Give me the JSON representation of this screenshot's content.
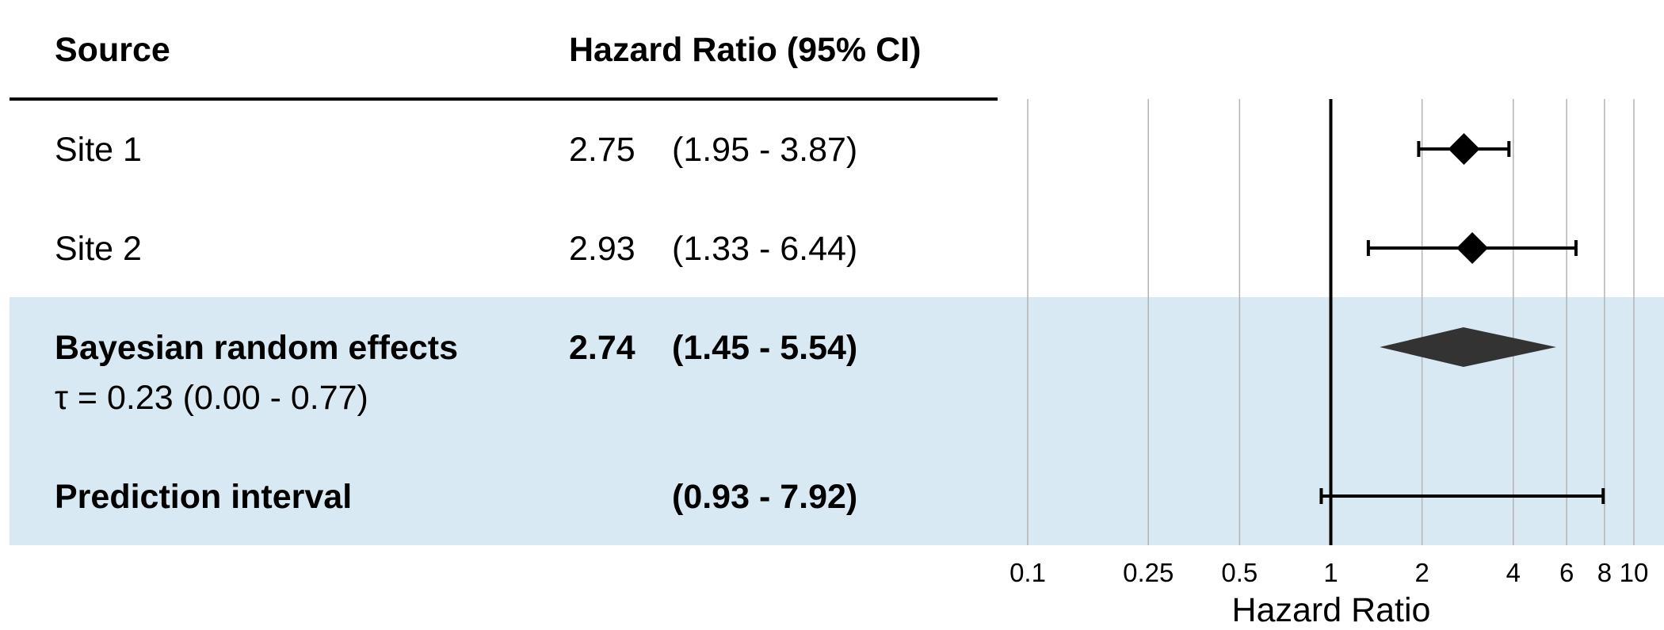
{
  "colors": {
    "band": "#d8e9f4",
    "grid": "#b3b3b3",
    "ink": "#000000",
    "pooled": "#333333"
  },
  "table": {
    "header_source": "Source",
    "header_hr": "Hazard Ratio (95% CI)"
  },
  "chart_data": {
    "type": "forest",
    "xlabel": "Hazard Ratio",
    "x_scale": "log",
    "xlim": [
      0.1,
      10
    ],
    "ticks": [
      {
        "value": 0.1,
        "label": "0.1"
      },
      {
        "value": 0.25,
        "label": "0.25"
      },
      {
        "value": 0.5,
        "label": "0.5"
      },
      {
        "value": 1,
        "label": "1"
      },
      {
        "value": 2,
        "label": "2"
      },
      {
        "value": 4,
        "label": "4"
      },
      {
        "value": 6,
        "label": "6"
      },
      {
        "value": 8,
        "label": "8"
      },
      {
        "value": 10,
        "label": "10"
      }
    ],
    "reference_line": 1,
    "rows": [
      {
        "label": "Site 1",
        "subtitle": "",
        "estimate": 2.75,
        "estimate_text": "2.75",
        "lower": 1.95,
        "upper": 3.87,
        "ci_text": "(1.95 - 3.87)",
        "kind": "study",
        "bold": false,
        "shaded": false
      },
      {
        "label": "Site 2",
        "subtitle": "",
        "estimate": 2.93,
        "estimate_text": "2.93",
        "lower": 1.33,
        "upper": 6.44,
        "ci_text": "(1.33 - 6.44)",
        "kind": "study",
        "bold": false,
        "shaded": false
      },
      {
        "label": "Bayesian random effects",
        "subtitle": "τ = 0.23 (0.00 - 0.77)",
        "estimate": 2.74,
        "estimate_text": "2.74",
        "lower": 1.45,
        "upper": 5.54,
        "ci_text": "(1.45 - 5.54)",
        "kind": "pooled",
        "bold": true,
        "shaded": true
      },
      {
        "label": "Prediction interval",
        "subtitle": "",
        "estimate": null,
        "estimate_text": "",
        "lower": 0.93,
        "upper": 7.92,
        "ci_text": "(0.93 - 7.92)",
        "kind": "interval",
        "bold": true,
        "shaded": true
      }
    ]
  }
}
